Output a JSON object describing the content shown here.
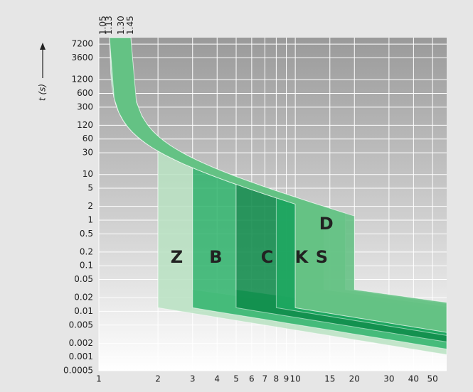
{
  "chart_data": {
    "type": "trip-curves",
    "ylabel": "t (s)",
    "xlim": [
      1,
      59
    ],
    "ylim": [
      0.0005,
      10000
    ],
    "log_x": true,
    "log_y": true,
    "grid": true,
    "xticks": [
      1,
      2,
      3,
      4,
      5,
      6,
      7,
      8,
      9,
      10,
      15,
      20,
      30,
      40,
      50
    ],
    "yticks": [
      7200,
      3600,
      1200,
      600,
      300,
      120,
      60,
      30,
      10,
      5,
      2,
      1,
      0.5,
      0.2,
      0.1,
      0.05,
      0.02,
      0.01,
      0.005,
      0.002,
      0.001,
      0.0005
    ],
    "thermal_limits": [
      {
        "value": 1.05,
        "label": "1.05"
      },
      {
        "value": 1.13,
        "label": "1.13"
      },
      {
        "value": 1.3,
        "label": "1.30"
      },
      {
        "value": 1.45,
        "label": "1.45"
      }
    ],
    "series": [
      {
        "name": "Z",
        "color": "#b8e2c2",
        "range": [
          2,
          3
        ]
      },
      {
        "name": "B",
        "color": "#2fb46c",
        "range": [
          3,
          5
        ]
      },
      {
        "name": "C",
        "color": "#0a8a48",
        "range": [
          5,
          10
        ]
      },
      {
        "name": "K",
        "color": "#1fa961",
        "range": [
          8,
          14
        ]
      },
      {
        "name": "S",
        "color": "#92d5a5",
        "range": [
          10,
          18
        ]
      },
      {
        "name": "D",
        "color": "#5fc080",
        "range": [
          10,
          20
        ]
      }
    ]
  }
}
